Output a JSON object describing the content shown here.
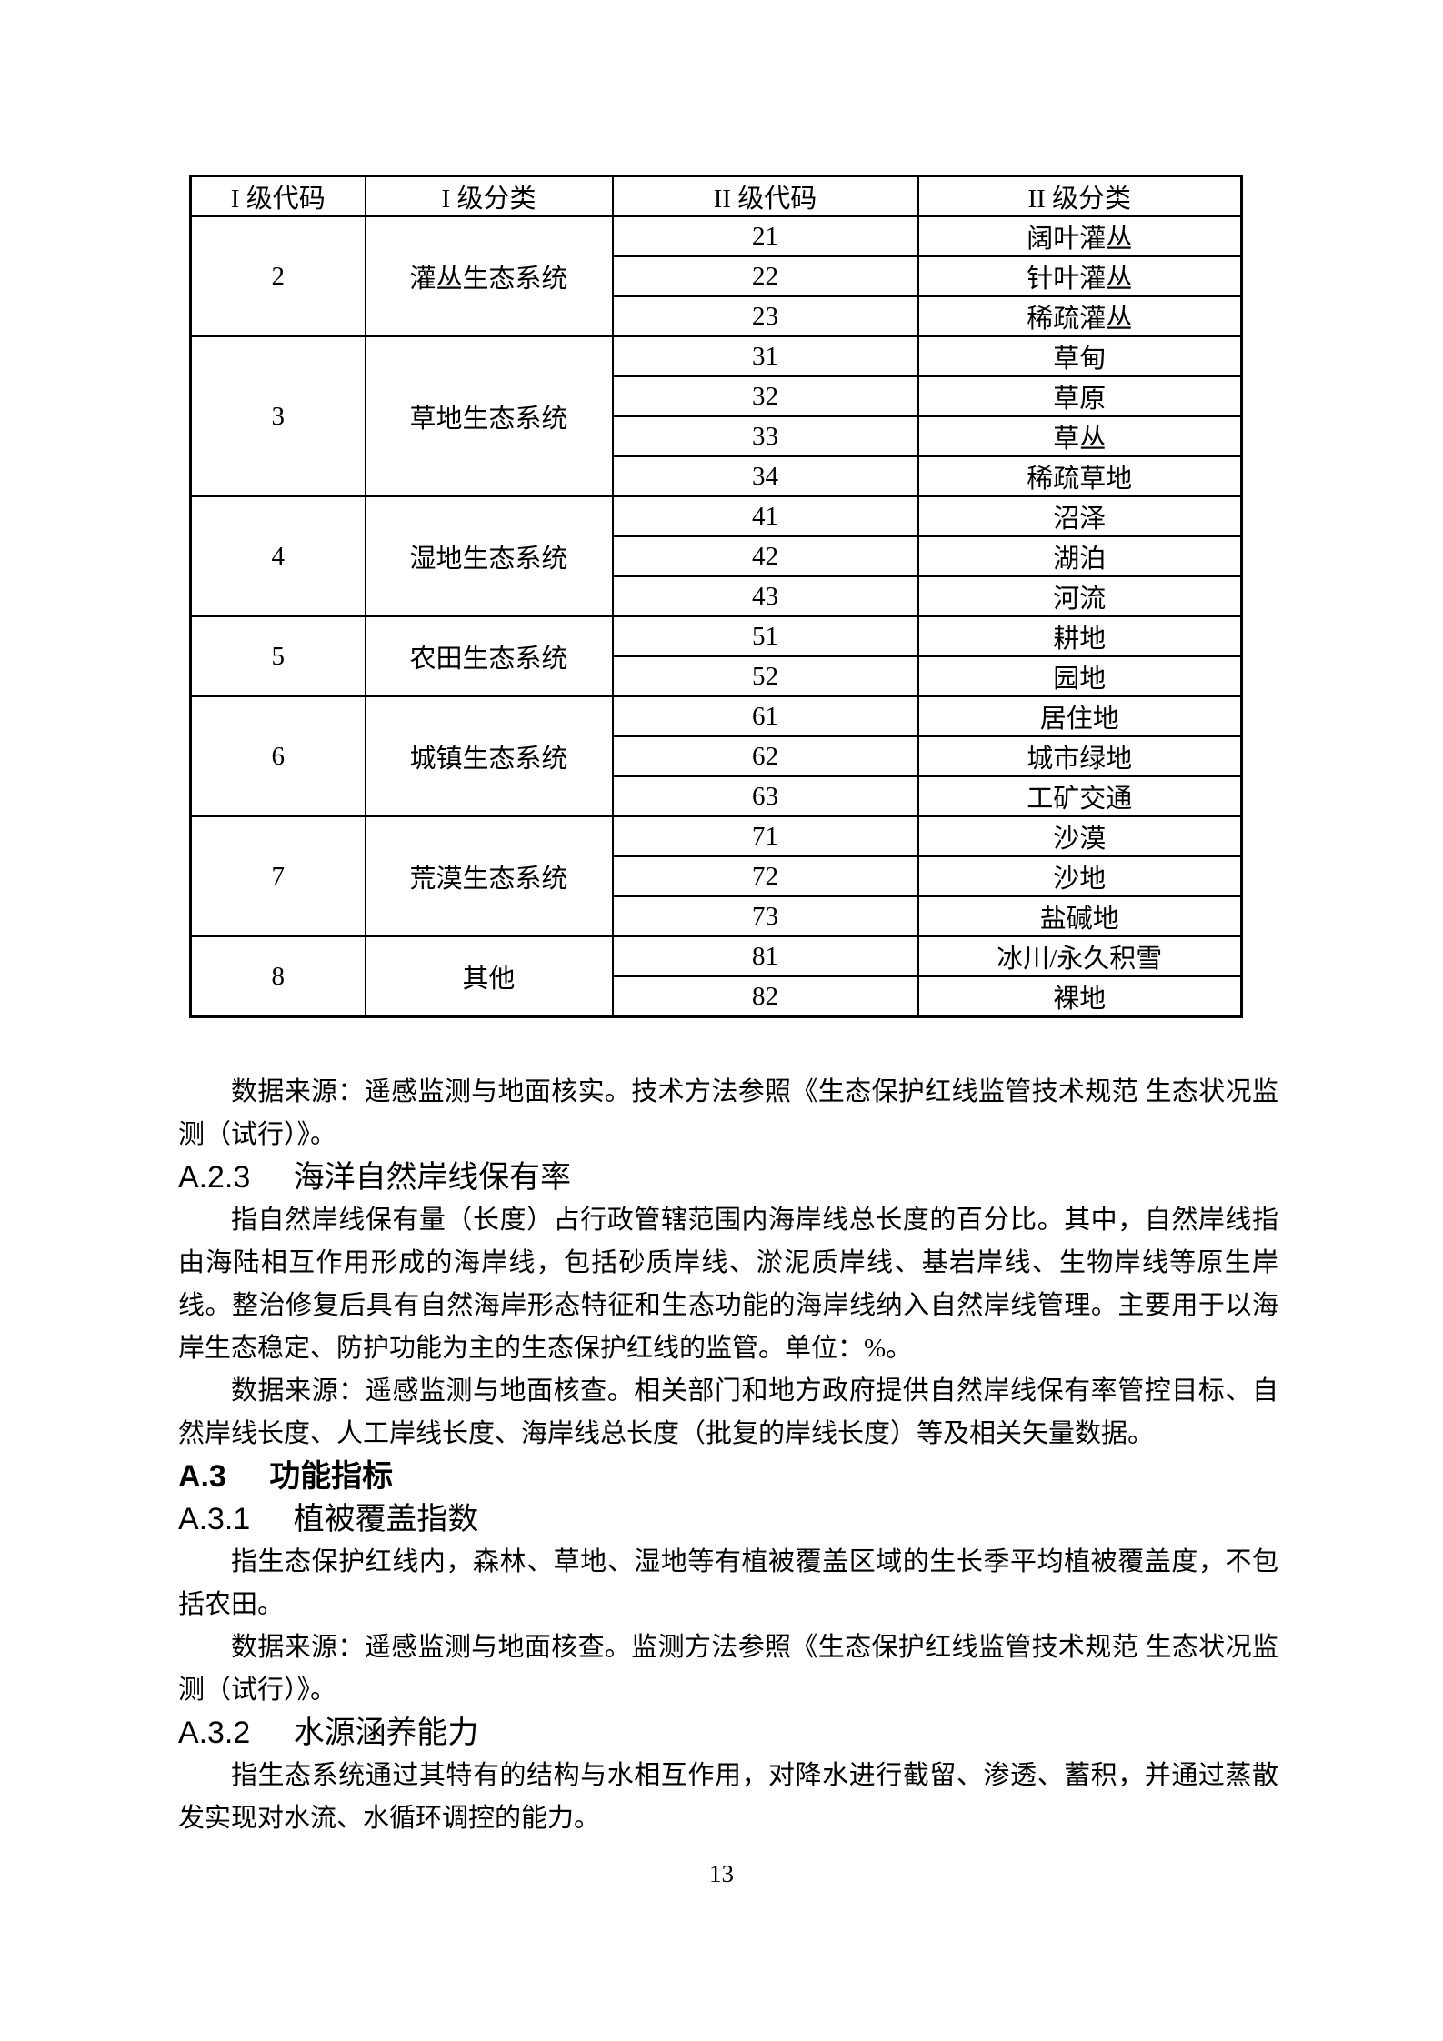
{
  "table": {
    "headers": [
      "I 级代码",
      "I 级分类",
      "II 级代码",
      "II 级分类"
    ],
    "groups": [
      {
        "code": "2",
        "name": "灌丛生态系统",
        "rows": [
          [
            "21",
            "阔叶灌丛"
          ],
          [
            "22",
            "针叶灌丛"
          ],
          [
            "23",
            "稀疏灌丛"
          ]
        ]
      },
      {
        "code": "3",
        "name": "草地生态系统",
        "rows": [
          [
            "31",
            "草甸"
          ],
          [
            "32",
            "草原"
          ],
          [
            "33",
            "草丛"
          ],
          [
            "34",
            "稀疏草地"
          ]
        ]
      },
      {
        "code": "4",
        "name": "湿地生态系统",
        "rows": [
          [
            "41",
            "沼泽"
          ],
          [
            "42",
            "湖泊"
          ],
          [
            "43",
            "河流"
          ]
        ]
      },
      {
        "code": "5",
        "name": "农田生态系统",
        "rows": [
          [
            "51",
            "耕地"
          ],
          [
            "52",
            "园地"
          ]
        ]
      },
      {
        "code": "6",
        "name": "城镇生态系统",
        "rows": [
          [
            "61",
            "居住地"
          ],
          [
            "62",
            "城市绿地"
          ],
          [
            "63",
            "工矿交通"
          ]
        ]
      },
      {
        "code": "7",
        "name": "荒漠生态系统",
        "rows": [
          [
            "71",
            "沙漠"
          ],
          [
            "72",
            "沙地"
          ],
          [
            "73",
            "盐碱地"
          ]
        ]
      },
      {
        "code": "8",
        "name": "其他",
        "rows": [
          [
            "81",
            "冰川/永久积雪"
          ],
          [
            "82",
            "裸地"
          ]
        ]
      }
    ]
  },
  "sections": {
    "source_forest": "数据来源：遥感监测与地面核实。技术方法参照《生态保护红线监管技术规范 生态状况监测（试行）》。",
    "h_a23": {
      "num": "A.2.3",
      "title": "海洋自然岸线保有率"
    },
    "p_a23_def": "指自然岸线保有量（长度）占行政管辖范围内海岸线总长度的百分比。其中，自然岸线指由海陆相互作用形成的海岸线，包括砂质岸线、淤泥质岸线、基岩岸线、生物岸线等原生岸线。整治修复后具有自然海岸形态特征和生态功能的海岸线纳入自然岸线管理。主要用于以海岸生态稳定、防护功能为主的生态保护红线的监管。单位：%。",
    "p_a23_source": "数据来源：遥感监测与地面核查。相关部门和地方政府提供自然岸线保有率管控目标、自然岸线长度、人工岸线长度、海岸线总长度（批复的岸线长度）等及相关矢量数据。",
    "h_a3": {
      "num": "A.3",
      "title": "功能指标"
    },
    "h_a31": {
      "num": "A.3.1",
      "title": "植被覆盖指数"
    },
    "p_a31_def": "指生态保护红线内，森林、草地、湿地等有植被覆盖区域的生长季平均植被覆盖度，不包括农田。",
    "p_a31_source": "数据来源：遥感监测与地面核查。监测方法参照《生态保护红线监管技术规范 生态状况监测（试行）》。",
    "h_a32": {
      "num": "A.3.2",
      "title": "水源涵养能力"
    },
    "p_a32_def": "指生态系统通过其特有的结构与水相互作用，对降水进行截留、渗透、蓄积，并通过蒸散发实现对水流、水循环调控的能力。"
  },
  "footer": {
    "page_number": "13"
  }
}
